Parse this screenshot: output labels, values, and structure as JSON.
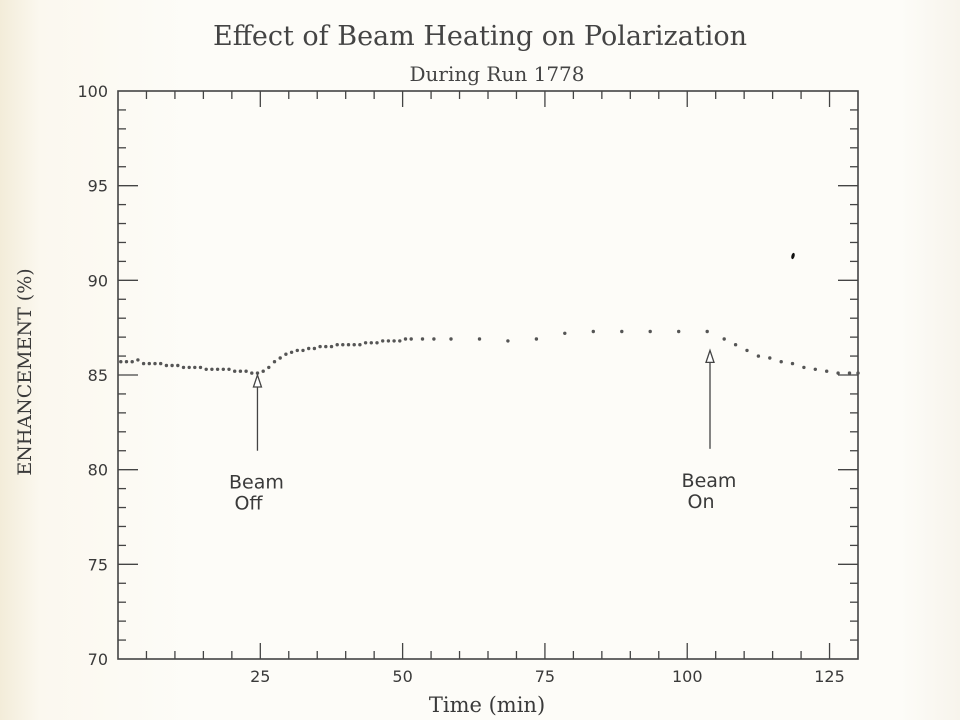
{
  "chart_data": {
    "type": "scatter",
    "title": "Effect of Beam Heating on Polarization",
    "subtitle": "During Run 1778",
    "xlabel": "Time (min)",
    "ylabel": "ENHANCEMENT (%)",
    "xlim": [
      0,
      130
    ],
    "ylim": [
      70,
      100
    ],
    "x_ticks": [
      25,
      50,
      75,
      100,
      125
    ],
    "y_ticks": [
      70,
      75,
      80,
      85,
      90,
      95,
      100
    ],
    "grid": false,
    "series": [
      {
        "color": "#555555",
        "points": [
          [
            0.5,
            85.7
          ],
          [
            1.5,
            85.7
          ],
          [
            2.5,
            85.7
          ],
          [
            3.5,
            85.8
          ],
          [
            4.5,
            85.6
          ],
          [
            5.5,
            85.6
          ],
          [
            6.5,
            85.6
          ],
          [
            7.5,
            85.6
          ],
          [
            8.5,
            85.5
          ],
          [
            9.5,
            85.5
          ],
          [
            10.5,
            85.5
          ],
          [
            11.5,
            85.4
          ],
          [
            12.5,
            85.4
          ],
          [
            13.5,
            85.4
          ],
          [
            14.5,
            85.4
          ],
          [
            15.5,
            85.3
          ],
          [
            16.5,
            85.3
          ],
          [
            17.5,
            85.3
          ],
          [
            18.5,
            85.3
          ],
          [
            19.5,
            85.3
          ],
          [
            20.5,
            85.2
          ],
          [
            21.5,
            85.2
          ],
          [
            22.5,
            85.2
          ],
          [
            23.5,
            85.1
          ],
          [
            24.5,
            85.1
          ],
          [
            25.5,
            85.2
          ],
          [
            26.5,
            85.4
          ],
          [
            27.5,
            85.7
          ],
          [
            28.5,
            85.9
          ],
          [
            29.5,
            86.1
          ],
          [
            30.5,
            86.2
          ],
          [
            31.5,
            86.3
          ],
          [
            32.5,
            86.3
          ],
          [
            33.5,
            86.4
          ],
          [
            34.5,
            86.4
          ],
          [
            35.5,
            86.5
          ],
          [
            36.5,
            86.5
          ],
          [
            37.5,
            86.5
          ],
          [
            38.5,
            86.6
          ],
          [
            39.5,
            86.6
          ],
          [
            40.5,
            86.6
          ],
          [
            41.5,
            86.6
          ],
          [
            42.5,
            86.6
          ],
          [
            43.5,
            86.7
          ],
          [
            44.5,
            86.7
          ],
          [
            45.5,
            86.7
          ],
          [
            46.5,
            86.8
          ],
          [
            47.5,
            86.8
          ],
          [
            48.5,
            86.8
          ],
          [
            49.5,
            86.8
          ],
          [
            50.5,
            86.9
          ],
          [
            51.5,
            86.9
          ],
          [
            53.5,
            86.9
          ],
          [
            55.5,
            86.9
          ],
          [
            58.5,
            86.9
          ],
          [
            63.5,
            86.9
          ],
          [
            68.5,
            86.8
          ],
          [
            73.5,
            86.9
          ],
          [
            78.5,
            87.2
          ],
          [
            83.5,
            87.3
          ],
          [
            88.5,
            87.3
          ],
          [
            93.5,
            87.3
          ],
          [
            98.5,
            87.3
          ],
          [
            103.5,
            87.3
          ],
          [
            106.5,
            86.9
          ],
          [
            108.5,
            86.6
          ],
          [
            110.5,
            86.3
          ],
          [
            112.5,
            86.0
          ],
          [
            114.5,
            85.9
          ],
          [
            116.5,
            85.7
          ],
          [
            118.5,
            85.6
          ],
          [
            120.5,
            85.4
          ],
          [
            122.5,
            85.3
          ],
          [
            124.5,
            85.2
          ],
          [
            126.5,
            85.1
          ],
          [
            128.5,
            85.1
          ],
          [
            130,
            85.1
          ]
        ]
      }
    ],
    "annotations": [
      {
        "label_line1": "Beam",
        "label_line2": "Off",
        "x": 24.5,
        "y_tip": 85.0,
        "y_tail": 81.0
      },
      {
        "label_line1": "Beam",
        "label_line2": "On",
        "x": 104.0,
        "y_tip": 86.3,
        "y_tail": 81.1
      }
    ]
  }
}
